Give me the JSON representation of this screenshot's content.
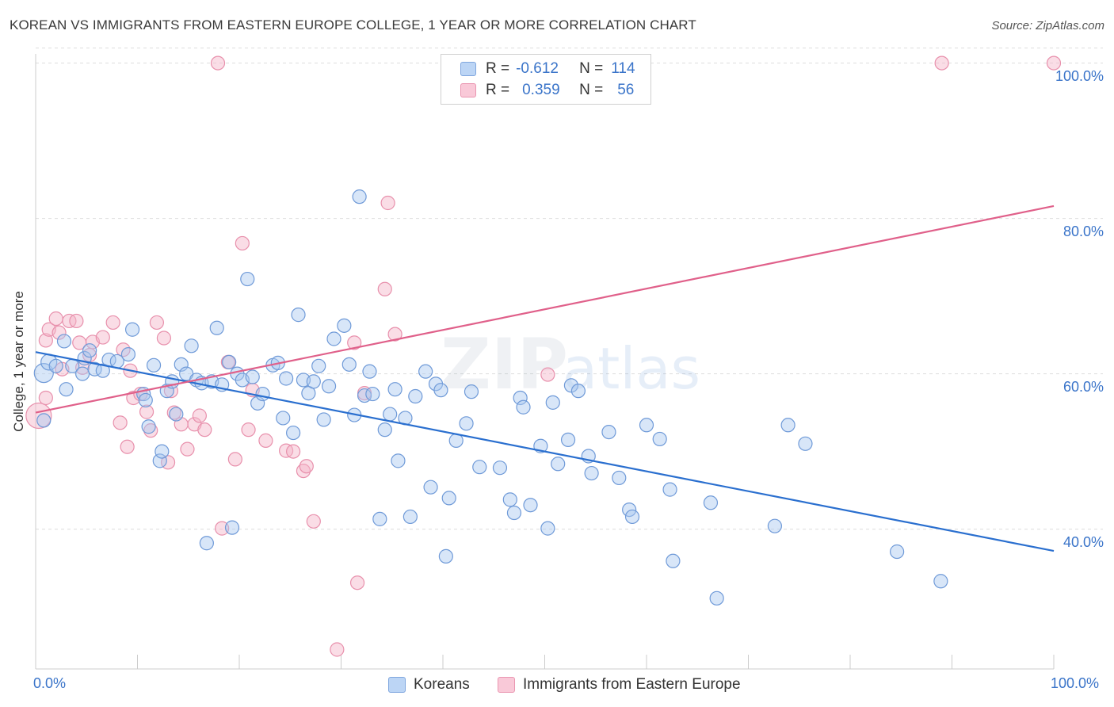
{
  "title": "KOREAN VS IMMIGRANTS FROM EASTERN EUROPE COLLEGE, 1 YEAR OR MORE CORRELATION CHART",
  "source": "Source: ZipAtlas.com",
  "watermark": {
    "zip": "ZIP",
    "atlas": "atlas"
  },
  "legend": {
    "r_label": "R =",
    "n_label": "N =",
    "rows": [
      {
        "r": "-0.612",
        "n": "114"
      },
      {
        "r": "0.359",
        "n": "56"
      }
    ]
  },
  "colors": {
    "blue_fill": "#a9c8f0",
    "blue_stroke": "#6f9ad8",
    "blue_line": "#2a6fcf",
    "pink_fill": "#f5b3c8",
    "pink_stroke": "#e890ac",
    "pink_line": "#e0608a",
    "tick_text": "#3a74c9",
    "grid": "#dddddd"
  },
  "chart_data": {
    "type": "scatter",
    "title": "KOREAN VS IMMIGRANTS FROM EASTERN EUROPE COLLEGE, 1 YEAR OR MORE CORRELATION CHART",
    "xlabel": "",
    "ylabel": "College, 1 year or more",
    "xlim": [
      0,
      100
    ],
    "ylim": [
      22,
      102
    ],
    "x_tick_labels": [
      "0.0%",
      "100.0%"
    ],
    "y_ticks": [
      40,
      60,
      80,
      100
    ],
    "y_tick_labels": [
      "40.0%",
      "60.0%",
      "80.0%",
      "100.0%"
    ],
    "grid": true,
    "legend_position": "top-center",
    "series": [
      {
        "name": "Koreans",
        "r": -0.612,
        "n": 114,
        "trend": {
          "x": [
            0,
            100
          ],
          "y": [
            62.8,
            37.2
          ]
        },
        "points": [
          [
            0.8,
            60.1
          ],
          [
            0.8,
            54.0
          ],
          [
            1.3,
            61.5
          ],
          [
            2.0,
            61.0
          ],
          [
            2.8,
            64.2
          ],
          [
            3.0,
            58.0
          ],
          [
            3.6,
            61.0
          ],
          [
            4.6,
            60.0
          ],
          [
            4.8,
            62.0
          ],
          [
            5.3,
            63.0
          ],
          [
            5.8,
            60.6
          ],
          [
            6.6,
            60.4
          ],
          [
            7.2,
            61.8
          ],
          [
            8.0,
            61.6
          ],
          [
            9.1,
            62.5
          ],
          [
            9.5,
            65.7
          ],
          [
            10.6,
            57.4
          ],
          [
            10.8,
            56.6
          ],
          [
            11.1,
            53.2
          ],
          [
            11.6,
            61.1
          ],
          [
            12.2,
            48.8
          ],
          [
            12.4,
            50.0
          ],
          [
            12.9,
            57.8
          ],
          [
            13.4,
            59.0
          ],
          [
            13.8,
            54.8
          ],
          [
            14.3,
            61.2
          ],
          [
            14.8,
            60.0
          ],
          [
            15.3,
            63.6
          ],
          [
            15.8,
            59.2
          ],
          [
            16.3,
            58.8
          ],
          [
            16.8,
            38.2
          ],
          [
            17.3,
            59.0
          ],
          [
            17.8,
            65.9
          ],
          [
            18.3,
            58.6
          ],
          [
            19.0,
            61.5
          ],
          [
            19.3,
            40.2
          ],
          [
            19.8,
            60.0
          ],
          [
            20.3,
            59.2
          ],
          [
            20.8,
            72.2
          ],
          [
            21.3,
            59.6
          ],
          [
            21.8,
            56.2
          ],
          [
            22.3,
            57.4
          ],
          [
            23.3,
            61.1
          ],
          [
            23.8,
            61.4
          ],
          [
            24.3,
            54.3
          ],
          [
            24.6,
            59.4
          ],
          [
            25.3,
            52.4
          ],
          [
            25.8,
            67.6
          ],
          [
            26.3,
            59.2
          ],
          [
            26.8,
            57.5
          ],
          [
            27.3,
            59.0
          ],
          [
            27.8,
            61.0
          ],
          [
            28.3,
            54.1
          ],
          [
            28.8,
            58.4
          ],
          [
            29.3,
            64.5
          ],
          [
            30.3,
            66.2
          ],
          [
            30.8,
            61.2
          ],
          [
            31.3,
            54.7
          ],
          [
            31.8,
            82.8
          ],
          [
            32.3,
            57.2
          ],
          [
            32.8,
            60.3
          ],
          [
            33.1,
            57.4
          ],
          [
            33.8,
            41.3
          ],
          [
            34.3,
            52.8
          ],
          [
            34.8,
            54.8
          ],
          [
            35.3,
            58.0
          ],
          [
            35.6,
            48.8
          ],
          [
            36.3,
            54.3
          ],
          [
            36.8,
            41.6
          ],
          [
            37.3,
            57.1
          ],
          [
            38.3,
            60.3
          ],
          [
            38.8,
            45.4
          ],
          [
            39.3,
            58.7
          ],
          [
            39.8,
            57.9
          ],
          [
            40.3,
            36.5
          ],
          [
            40.6,
            44.0
          ],
          [
            41.3,
            51.4
          ],
          [
            42.3,
            53.6
          ],
          [
            42.8,
            57.7
          ],
          [
            43.6,
            48.0
          ],
          [
            45.6,
            47.9
          ],
          [
            46.6,
            43.8
          ],
          [
            47.0,
            42.1
          ],
          [
            47.6,
            56.9
          ],
          [
            47.9,
            55.7
          ],
          [
            48.6,
            43.1
          ],
          [
            49.6,
            50.7
          ],
          [
            50.3,
            40.1
          ],
          [
            50.8,
            56.3
          ],
          [
            51.3,
            48.4
          ],
          [
            52.6,
            58.5
          ],
          [
            52.3,
            51.5
          ],
          [
            53.3,
            57.8
          ],
          [
            54.3,
            49.4
          ],
          [
            54.6,
            47.2
          ],
          [
            56.3,
            52.5
          ],
          [
            57.3,
            46.6
          ],
          [
            58.3,
            42.5
          ],
          [
            58.6,
            41.6
          ],
          [
            60.0,
            53.4
          ],
          [
            61.3,
            51.6
          ],
          [
            62.3,
            45.1
          ],
          [
            62.6,
            35.9
          ],
          [
            66.3,
            43.4
          ],
          [
            66.9,
            31.1
          ],
          [
            72.6,
            40.4
          ],
          [
            73.9,
            53.4
          ],
          [
            75.6,
            51.0
          ],
          [
            84.6,
            37.1
          ],
          [
            88.9,
            33.3
          ]
        ]
      },
      {
        "name": "Immigrants from Eastern Europe",
        "r": 0.359,
        "n": 56,
        "trend": {
          "x": [
            0,
            100
          ],
          "y": [
            55.0,
            81.6
          ]
        },
        "points": [
          [
            0.3,
            54.6
          ],
          [
            1.0,
            64.3
          ],
          [
            1.3,
            65.7
          ],
          [
            2.0,
            67.1
          ],
          [
            2.3,
            65.3
          ],
          [
            2.6,
            60.6
          ],
          [
            3.3,
            66.8
          ],
          [
            4.0,
            66.8
          ],
          [
            4.3,
            64.0
          ],
          [
            4.6,
            60.8
          ],
          [
            5.3,
            62.4
          ],
          [
            5.6,
            64.1
          ],
          [
            6.6,
            64.7
          ],
          [
            7.6,
            66.6
          ],
          [
            8.3,
            53.7
          ],
          [
            8.6,
            63.1
          ],
          [
            9.0,
            50.6
          ],
          [
            9.3,
            60.4
          ],
          [
            9.6,
            56.9
          ],
          [
            10.3,
            57.4
          ],
          [
            10.9,
            55.1
          ],
          [
            11.3,
            52.7
          ],
          [
            11.9,
            66.6
          ],
          [
            12.6,
            64.6
          ],
          [
            13.0,
            48.6
          ],
          [
            13.3,
            57.8
          ],
          [
            13.6,
            55.0
          ],
          [
            14.3,
            53.5
          ],
          [
            14.9,
            50.3
          ],
          [
            15.6,
            53.5
          ],
          [
            16.1,
            54.6
          ],
          [
            16.6,
            52.8
          ],
          [
            17.9,
            100.0
          ],
          [
            18.3,
            40.1
          ],
          [
            18.9,
            61.5
          ],
          [
            19.6,
            49.0
          ],
          [
            20.3,
            76.8
          ],
          [
            20.9,
            52.8
          ],
          [
            21.3,
            57.9
          ],
          [
            22.6,
            51.4
          ],
          [
            24.6,
            50.1
          ],
          [
            25.3,
            50.0
          ],
          [
            26.3,
            47.5
          ],
          [
            26.6,
            48.1
          ],
          [
            27.3,
            41.0
          ],
          [
            29.6,
            24.5
          ],
          [
            31.3,
            64.0
          ],
          [
            31.6,
            33.1
          ],
          [
            32.3,
            57.5
          ],
          [
            34.3,
            70.9
          ],
          [
            34.6,
            82.0
          ],
          [
            35.3,
            65.1
          ],
          [
            50.3,
            59.9
          ],
          [
            89.0,
            100.0
          ],
          [
            100.0,
            100.0
          ],
          [
            1.0,
            56.9
          ]
        ]
      }
    ]
  }
}
